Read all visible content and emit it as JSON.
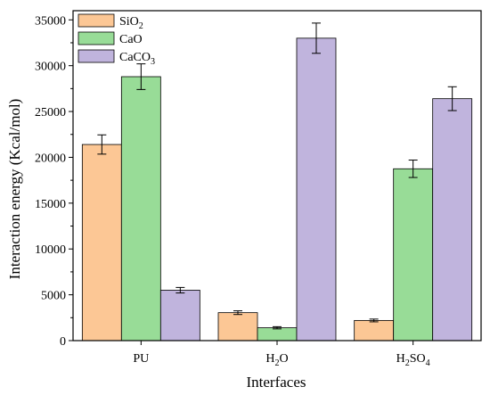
{
  "chart_data": {
    "type": "bar",
    "categories": [
      "PU",
      "H2O",
      "H2SO4"
    ],
    "category_labels": [
      {
        "base": "PU",
        "sub": ""
      },
      {
        "base": "H",
        "sub": "2",
        "tail": "O"
      },
      {
        "base": "H",
        "sub": "2",
        "tail": "SO",
        "sub2": "4"
      }
    ],
    "series": [
      {
        "name": "SiO2",
        "label": {
          "base": "SiO",
          "sub": "2"
        },
        "color": "#fcc795",
        "values": [
          21400,
          3050,
          2200
        ],
        "errors": [
          1050,
          200,
          150
        ]
      },
      {
        "name": "CaO",
        "label": {
          "base": "CaO",
          "sub": ""
        },
        "color": "#98dc97",
        "values": [
          28800,
          1400,
          18750
        ],
        "errors": [
          1400,
          120,
          950
        ]
      },
      {
        "name": "CaCO3",
        "label": {
          "base": "CaCO",
          "sub": "3"
        },
        "color": "#c0b4dd",
        "values": [
          5500,
          33000,
          26400
        ],
        "errors": [
          300,
          1650,
          1300
        ]
      }
    ],
    "xlabel": "Interfaces",
    "ylabel": "Interaction energy (Kcal/mol)",
    "ylim": [
      0,
      36000
    ],
    "yticks": [
      0,
      5000,
      10000,
      15000,
      20000,
      25000,
      30000,
      35000
    ],
    "legend_position": "top-left",
    "grid": false,
    "error_bars": true
  }
}
